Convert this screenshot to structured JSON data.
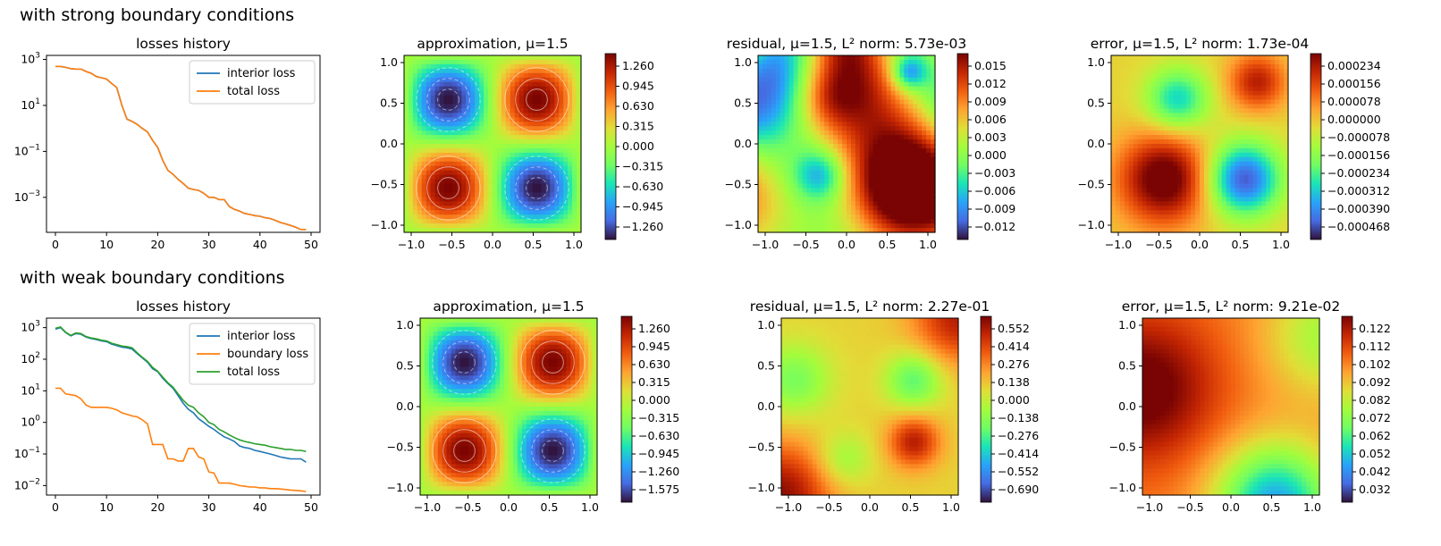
{
  "rows": [
    {
      "title": "with strong boundary conditions",
      "losses": {
        "title": "losses history",
        "yscale": "log",
        "legend_loc": "upper right",
        "x_ticks": [
          "0",
          "10",
          "20",
          "30",
          "40",
          "50"
        ],
        "y_ticks": [
          "10^3",
          "10^1",
          "10^-1",
          "10^-3"
        ],
        "series": [
          {
            "name": "interior loss",
            "color": "#1f77b4"
          },
          {
            "name": "total loss",
            "color": "#ff7f0e"
          }
        ]
      },
      "approximation": {
        "title": "approximation, μ=1.5",
        "colorbar_ticks": [
          "1.260",
          "0.945",
          "0.630",
          "0.315",
          "0.000",
          "−0.315",
          "−0.630",
          "−0.945",
          "−1.260"
        ]
      },
      "residual": {
        "title": "residual, μ=1.5, L² norm: 5.73e-03",
        "colorbar_ticks": [
          "0.015",
          "0.012",
          "0.009",
          "0.006",
          "0.003",
          "0.000",
          "−0.003",
          "−0.006",
          "−0.009",
          "−0.012"
        ]
      },
      "error": {
        "title": "error, μ=1.5, L² norm: 1.73e-04",
        "colorbar_ticks": [
          "0.000234",
          "0.000156",
          "0.000078",
          "0.000000",
          "−0.000078",
          "−0.000156",
          "−0.000234",
          "−0.000312",
          "−0.000390",
          "−0.000468"
        ]
      }
    },
    {
      "title": "with weak boundary conditions",
      "losses": {
        "title": "losses history",
        "yscale": "log",
        "legend_loc": "upper right",
        "x_ticks": [
          "0",
          "10",
          "20",
          "30",
          "40",
          "50"
        ],
        "y_ticks": [
          "10^3",
          "10^2",
          "10^1",
          "10^0",
          "10^-1",
          "10^-2"
        ],
        "series": [
          {
            "name": "interior loss",
            "color": "#1f77b4"
          },
          {
            "name": "boundary loss",
            "color": "#ff7f0e"
          },
          {
            "name": "total loss",
            "color": "#2ca02c"
          }
        ]
      },
      "approximation": {
        "title": "approximation, μ=1.5",
        "colorbar_ticks": [
          "1.260",
          "0.945",
          "0.630",
          "0.315",
          "0.000",
          "−0.315",
          "−0.630",
          "−0.945",
          "−1.260",
          "−1.575"
        ]
      },
      "residual": {
        "title": "residual, μ=1.5, L² norm: 2.27e-01",
        "colorbar_ticks": [
          "0.552",
          "0.414",
          "0.276",
          "0.138",
          "0.000",
          "−0.138",
          "−0.276",
          "−0.414",
          "−0.552",
          "−0.690"
        ]
      },
      "error": {
        "title": "error, μ=1.5, L² norm: 9.21e-02",
        "colorbar_ticks": [
          "0.122",
          "0.112",
          "0.102",
          "0.092",
          "0.082",
          "0.072",
          "0.062",
          "0.052",
          "0.042",
          "0.032"
        ]
      }
    }
  ],
  "field_axes": {
    "x_ticks": [
      "−1.0",
      "−0.5",
      "0.0",
      "0.5",
      "1.0"
    ],
    "y_ticks": [
      "1.0",
      "0.5",
      "0.0",
      "−0.5",
      "−1.0"
    ]
  },
  "chart_data": [
    {
      "type": "line",
      "title": "losses history",
      "yscale": "log",
      "xlim": [
        0,
        50
      ],
      "ylim": [
        3e-05,
        1500
      ],
      "x": [
        0,
        1,
        2,
        3,
        4,
        5,
        6,
        7,
        8,
        9,
        10,
        11,
        12,
        13,
        14,
        15,
        16,
        17,
        18,
        19,
        20,
        21,
        22,
        23,
        24,
        25,
        26,
        27,
        28,
        29,
        30,
        31,
        32,
        33,
        34,
        35,
        36,
        37,
        38,
        39,
        40,
        41,
        42,
        43,
        44,
        45,
        46,
        47,
        48,
        49
      ],
      "series": [
        {
          "name": "interior loss",
          "values": [
            500,
            500,
            450,
            400,
            380,
            380,
            300,
            250,
            180,
            160,
            140,
            90,
            60,
            10,
            2.5,
            2,
            1.5,
            1,
            0.7,
            0.3,
            0.15,
            0.04,
            0.015,
            0.01,
            0.006,
            0.004,
            0.0025,
            0.0022,
            0.002,
            0.0015,
            0.001,
            0.001,
            0.0008,
            0.0008,
            0.0004,
            0.0003,
            0.00025,
            0.0002,
            0.00018,
            0.00016,
            0.00015,
            0.00013,
            0.00012,
            0.0001,
            8e-05,
            7e-05,
            6e-05,
            5e-05,
            4e-05,
            4e-05
          ]
        },
        {
          "name": "total loss",
          "values": [
            500,
            500,
            450,
            400,
            380,
            380,
            300,
            250,
            180,
            160,
            140,
            90,
            60,
            10,
            2.5,
            2,
            1.5,
            1,
            0.7,
            0.3,
            0.15,
            0.04,
            0.015,
            0.01,
            0.006,
            0.004,
            0.0025,
            0.0022,
            0.002,
            0.0015,
            0.001,
            0.001,
            0.0008,
            0.0008,
            0.0004,
            0.0003,
            0.00025,
            0.0002,
            0.00018,
            0.00016,
            0.00015,
            0.00013,
            0.00012,
            0.0001,
            8e-05,
            7e-05,
            6e-05,
            5e-05,
            4e-05,
            4e-05
          ]
        }
      ]
    },
    {
      "type": "line",
      "title": "losses history",
      "yscale": "log",
      "xlim": [
        0,
        50
      ],
      "ylim": [
        0.005,
        2000
      ],
      "x": [
        0,
        1,
        2,
        3,
        4,
        5,
        6,
        7,
        8,
        9,
        10,
        11,
        12,
        13,
        14,
        15,
        16,
        17,
        18,
        19,
        20,
        21,
        22,
        23,
        24,
        25,
        26,
        27,
        28,
        29,
        30,
        31,
        32,
        33,
        34,
        35,
        36,
        37,
        38,
        39,
        40,
        41,
        42,
        43,
        44,
        45,
        46,
        47,
        48,
        49
      ],
      "series": [
        {
          "name": "interior loss",
          "values": [
            900,
            1000,
            700,
            550,
            650,
            620,
            500,
            450,
            420,
            380,
            360,
            300,
            270,
            240,
            230,
            210,
            150,
            110,
            80,
            50,
            40,
            25,
            17,
            12,
            7,
            4,
            2.6,
            2,
            1.3,
            1,
            0.75,
            0.6,
            0.45,
            0.35,
            0.3,
            0.25,
            0.18,
            0.16,
            0.15,
            0.13,
            0.12,
            0.11,
            0.1,
            0.09,
            0.08,
            0.075,
            0.07,
            0.07,
            0.07,
            0.055
          ]
        },
        {
          "name": "boundary loss",
          "values": [
            12,
            12,
            8,
            7.5,
            7,
            5.5,
            3.5,
            3,
            3,
            3,
            3,
            2.8,
            2.5,
            2,
            1.8,
            1.6,
            1.5,
            1.2,
            0.9,
            0.2,
            0.2,
            0.2,
            0.07,
            0.07,
            0.06,
            0.06,
            0.15,
            0.15,
            0.08,
            0.07,
            0.027,
            0.025,
            0.012,
            0.012,
            0.012,
            0.011,
            0.01,
            0.0095,
            0.009,
            0.009,
            0.0085,
            0.0085,
            0.008,
            0.008,
            0.0078,
            0.0075,
            0.0072,
            0.007,
            0.0068,
            0.0065
          ]
        },
        {
          "name": "total loss",
          "values": [
            950,
            1050,
            720,
            570,
            680,
            650,
            520,
            470,
            440,
            400,
            380,
            320,
            290,
            260,
            250,
            230,
            160,
            115,
            85,
            55,
            42,
            27,
            18,
            13,
            8,
            5,
            3.5,
            3,
            2,
            1.5,
            1,
            0.85,
            0.6,
            0.5,
            0.4,
            0.33,
            0.28,
            0.25,
            0.23,
            0.21,
            0.2,
            0.19,
            0.17,
            0.16,
            0.15,
            0.14,
            0.14,
            0.13,
            0.13,
            0.12
          ]
        }
      ]
    },
    {
      "type": "heatmap",
      "title": "approximation, μ=1.5",
      "xlim": [
        -1,
        1
      ],
      "ylim": [
        -1,
        1
      ],
      "description_values": {
        "minima_at": [
          [
            -0.5,
            0.5
          ],
          [
            0.5,
            -0.5
          ]
        ],
        "maxima_at": [
          [
            0.5,
            0.5
          ],
          [
            -0.5,
            -0.5
          ]
        ],
        "amplitude": 1.5
      },
      "colorbar_range": [
        -1.5,
        1.5
      ]
    },
    {
      "type": "heatmap",
      "title": "residual, μ=1.5, L² norm: 5.73e-03",
      "xlim": [
        -1,
        1
      ],
      "ylim": [
        -1,
        1
      ],
      "colorbar_range": [
        -0.0135,
        0.016
      ]
    },
    {
      "type": "heatmap",
      "title": "error, μ=1.5, L² norm: 1.73e-04",
      "xlim": [
        -1,
        1
      ],
      "ylim": [
        -1,
        1
      ],
      "colorbar_range": [
        -0.000468,
        0.00028
      ]
    },
    {
      "type": "heatmap",
      "title": "approximation, μ=1.5",
      "xlim": [
        -1,
        1
      ],
      "ylim": [
        -1,
        1
      ],
      "colorbar_range": [
        -1.575,
        1.4
      ]
    },
    {
      "type": "heatmap",
      "title": "residual, μ=1.5, L² norm: 2.27e-01",
      "xlim": [
        -1,
        1
      ],
      "ylim": [
        -1,
        1
      ],
      "colorbar_range": [
        -0.76,
        0.58
      ]
    },
    {
      "type": "heatmap",
      "title": "error, μ=1.5, L² norm: 9.21e-02",
      "xlim": [
        -1,
        1
      ],
      "ylim": [
        -1,
        1
      ],
      "colorbar_range": [
        0.032,
        0.13
      ]
    }
  ]
}
